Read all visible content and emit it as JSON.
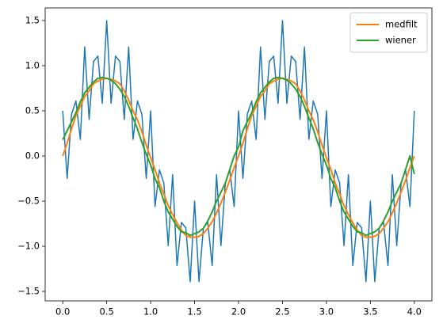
{
  "chart_data": {
    "type": "line",
    "x": [
      0,
      0.05,
      0.1,
      0.15,
      0.2,
      0.25,
      0.3,
      0.35,
      0.4,
      0.45,
      0.5,
      0.55,
      0.6,
      0.65,
      0.7,
      0.75,
      0.8,
      0.85,
      0.9,
      0.95,
      1,
      1.05,
      1.1,
      1.15,
      1.2,
      1.25,
      1.3,
      1.35,
      1.4,
      1.45,
      1.5,
      1.55,
      1.6,
      1.65,
      1.7,
      1.75,
      1.8,
      1.85,
      1.9,
      1.95,
      2,
      2.05,
      2.1,
      2.15,
      2.2,
      2.25,
      2.3,
      2.35,
      2.4,
      2.45,
      2.5,
      2.55,
      2.6,
      2.65,
      2.7,
      2.75,
      2.8,
      2.85,
      2.9,
      2.95,
      3,
      3.05,
      3.1,
      3.15,
      3.2,
      3.25,
      3.3,
      3.35,
      3.4,
      3.45,
      3.5,
      3.55,
      3.6,
      3.65,
      3.7,
      3.75,
      3.8,
      3.85,
      3.9,
      3.95,
      4
    ],
    "series": [
      {
        "color": "#1f77b4",
        "width": 1.5,
        "values": [
          0.5,
          -0.249,
          0.464,
          0.609,
          0.183,
          1.207,
          0.404,
          1.046,
          1.106,
          0.583,
          1.5,
          0.583,
          1.106,
          1.046,
          0.404,
          1.207,
          0.183,
          0.609,
          0.464,
          -0.249,
          0.5,
          -0.561,
          -0.154,
          -0.299,
          -0.993,
          -0.207,
          -1.214,
          -0.736,
          -0.796,
          -1.393,
          -0.5,
          -1.393,
          -0.796,
          -0.736,
          -1.214,
          -0.207,
          -0.993,
          -0.299,
          -0.154,
          -0.561,
          0.5,
          -0.249,
          0.464,
          0.609,
          0.183,
          1.207,
          0.404,
          1.046,
          1.106,
          0.583,
          1.5,
          0.583,
          1.106,
          1.046,
          0.404,
          1.207,
          0.183,
          0.609,
          0.464,
          -0.249,
          0.5,
          -0.561,
          -0.154,
          -0.299,
          -0.993,
          -0.207,
          -1.214,
          -0.736,
          -0.796,
          -1.393,
          -0.5,
          -1.393,
          -0.796,
          -0.736,
          -1.214,
          -0.207,
          -0.993,
          -0.299,
          -0.154,
          -0.561,
          0.5
        ]
      },
      {
        "name": "medfilt",
        "color": "#ff7f0e",
        "width": 2,
        "values": [
          0,
          0.14,
          0.3,
          0.45,
          0.55,
          0.66,
          0.72,
          0.8,
          0.83,
          0.85,
          0.86,
          0.85,
          0.83,
          0.8,
          0.72,
          0.62,
          0.5,
          0.4,
          0.27,
          0.12,
          -0.02,
          -0.15,
          -0.3,
          -0.42,
          -0.55,
          -0.65,
          -0.74,
          -0.82,
          -0.88,
          -0.9,
          -0.9,
          -0.89,
          -0.86,
          -0.8,
          -0.73,
          -0.63,
          -0.52,
          -0.4,
          -0.27,
          -0.13,
          0,
          0.14,
          0.3,
          0.45,
          0.55,
          0.66,
          0.72,
          0.8,
          0.83,
          0.85,
          0.86,
          0.85,
          0.83,
          0.8,
          0.72,
          0.62,
          0.5,
          0.4,
          0.27,
          0.12,
          -0.02,
          -0.15,
          -0.3,
          -0.42,
          -0.55,
          -0.65,
          -0.74,
          -0.82,
          -0.88,
          -0.9,
          -0.9,
          -0.89,
          -0.86,
          -0.8,
          -0.73,
          -0.63,
          -0.52,
          -0.4,
          -0.27,
          -0.13,
          0
        ]
      },
      {
        "name": "wiener",
        "color": "#2ca02c",
        "width": 2,
        "values": [
          0.18,
          0.28,
          0.38,
          0.48,
          0.6,
          0.7,
          0.76,
          0.82,
          0.86,
          0.87,
          0.86,
          0.84,
          0.8,
          0.74,
          0.66,
          0.55,
          0.42,
          0.3,
          0.15,
          0.02,
          -0.1,
          -0.25,
          -0.35,
          -0.5,
          -0.62,
          -0.7,
          -0.78,
          -0.84,
          -0.85,
          -0.88,
          -0.86,
          -0.84,
          -0.8,
          -0.72,
          -0.62,
          -0.5,
          -0.4,
          -0.3,
          -0.15,
          0,
          0.1,
          0.28,
          0.38,
          0.48,
          0.6,
          0.7,
          0.76,
          0.82,
          0.86,
          0.87,
          0.86,
          0.84,
          0.8,
          0.74,
          0.66,
          0.55,
          0.42,
          0.3,
          0.15,
          0.02,
          -0.1,
          -0.25,
          -0.35,
          -0.5,
          -0.62,
          -0.7,
          -0.78,
          -0.84,
          -0.85,
          -0.88,
          -0.86,
          -0.84,
          -0.8,
          -0.72,
          -0.62,
          -0.5,
          -0.4,
          -0.3,
          -0.15,
          0,
          -0.2
        ]
      }
    ],
    "xlim": [
      -0.2,
      4.2
    ],
    "ylim": [
      -1.605,
      1.64
    ],
    "xticks": [
      {
        "value": 0,
        "label": "0.0"
      },
      0.5,
      {
        "value": 1,
        "label": "1.0"
      },
      1.5,
      {
        "value": 2,
        "label": "2.0"
      },
      2.5,
      {
        "value": 3,
        "label": "3.0"
      },
      3.5,
      {
        "value": 4,
        "label": "4.0"
      }
    ],
    "yticks": [
      {
        "value": -1.5,
        "label": "−1.5"
      },
      {
        "value": -1,
        "label": "−1.0"
      },
      {
        "value": -0.5,
        "label": "−0.5"
      },
      {
        "value": 0,
        "label": "0.0"
      },
      0.5,
      {
        "value": 1,
        "label": "1.0"
      },
      1.5
    ],
    "legend": "upper right"
  }
}
